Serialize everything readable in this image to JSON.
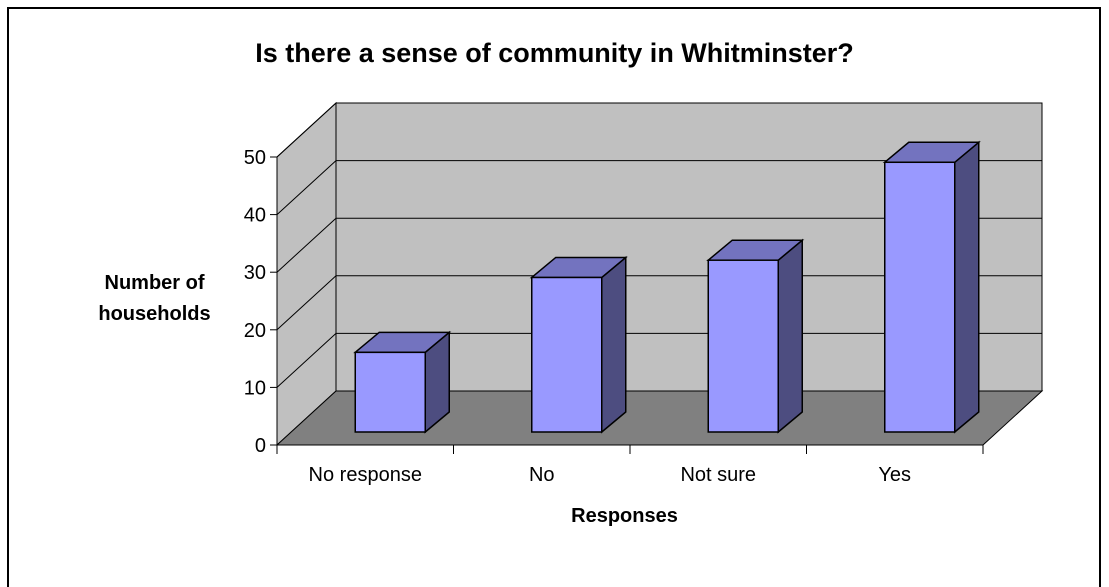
{
  "chart_data": {
    "type": "bar",
    "title": "Is there a sense of community in Whitminster?",
    "xlabel": "Responses",
    "ylabel": "Number of households",
    "categories": [
      "No response",
      "No",
      "Not sure",
      "Yes"
    ],
    "values": [
      14,
      27,
      30,
      47
    ],
    "ylim": [
      0,
      50
    ],
    "yticks": [
      0,
      10,
      20,
      30,
      40,
      50
    ],
    "grid": true,
    "legend": "none",
    "colors": {
      "bar_front": "#9999ff",
      "bar_side": "#4d4d80",
      "bar_top": "#7373bf",
      "back_wall": "#c0c0c0",
      "side_wall": "#c0c0c0",
      "floor": "#808080"
    }
  }
}
